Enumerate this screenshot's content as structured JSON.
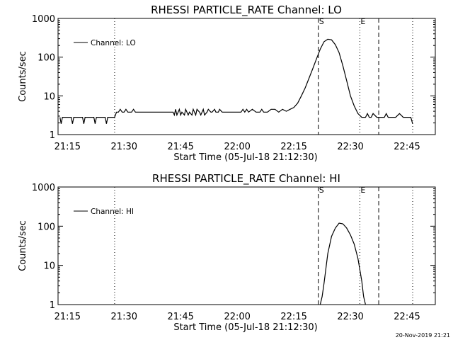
{
  "timestamp": "20-Nov-2019 21:21",
  "chart_data": [
    {
      "type": "line",
      "title": "RHESSI PARTICLE_RATE Channel: LO",
      "xlabel": "Start Time (05-Jul-18 21:12:30)",
      "ylabel": "Counts/sec",
      "yscale": "log",
      "ylim": [
        1,
        1000
      ],
      "xlim": [
        "21:12:30",
        "22:52:30"
      ],
      "x_ticks": [
        "21:15",
        "21:30",
        "21:45",
        "22:00",
        "22:15",
        "22:30",
        "22:45"
      ],
      "y_ticks": [
        "1",
        "10",
        "100",
        "1000"
      ],
      "legend": {
        "label": "Channel: LO",
        "position": "top-left"
      },
      "markers": [
        {
          "label": "",
          "time": "21:27:30",
          "style": "dotted"
        },
        {
          "label": "S",
          "time": "22:21:30",
          "style": "dashed"
        },
        {
          "label": "E",
          "time": "22:32:30",
          "style": "dotted"
        },
        {
          "label": "",
          "time": "22:37:30",
          "style": "dashed"
        },
        {
          "label": "",
          "time": "22:46:30",
          "style": "dotted"
        }
      ],
      "series": [
        {
          "name": "Channel: LO",
          "x": [
            "21:13:00",
            "21:13:20",
            "21:13:40",
            "21:14:00",
            "21:14:20",
            "21:15:00",
            "21:16:00",
            "21:16:20",
            "21:16:40",
            "21:17:00",
            "21:18:00",
            "21:19:00",
            "21:19:20",
            "21:19:40",
            "21:20:00",
            "21:21:00",
            "21:22:00",
            "21:22:20",
            "21:22:40",
            "21:23:00",
            "21:24:00",
            "21:25:00",
            "21:25:20",
            "21:25:40",
            "21:26:00",
            "21:27:00",
            "21:27:30",
            "21:28:00",
            "21:28:30",
            "21:29:00",
            "21:29:30",
            "21:30:00",
            "21:30:30",
            "21:31:00",
            "21:32:00",
            "21:32:30",
            "21:33:00",
            "21:34:00",
            "21:35:00",
            "21:36:00",
            "21:38:00",
            "21:40:00",
            "21:42:00",
            "21:43:00",
            "21:43:20",
            "21:43:40",
            "21:44:00",
            "21:44:20",
            "21:44:40",
            "21:45:00",
            "21:45:20",
            "21:46:00",
            "21:46:20",
            "21:47:00",
            "21:47:20",
            "21:48:00",
            "21:48:20",
            "21:49:00",
            "21:49:20",
            "21:50:00",
            "21:50:20",
            "21:51:00",
            "21:51:20",
            "21:52:00",
            "21:52:20",
            "21:53:00",
            "21:53:20",
            "21:54:00",
            "21:54:20",
            "21:55:00",
            "21:55:20",
            "21:56:00",
            "21:57:00",
            "21:58:00",
            "21:59:00",
            "22:00:00",
            "22:01:00",
            "22:01:30",
            "22:02:00",
            "22:02:30",
            "22:03:00",
            "22:04:00",
            "22:05:00",
            "22:06:00",
            "22:06:30",
            "22:07:00",
            "22:08:00",
            "22:09:00",
            "22:10:00",
            "22:11:00",
            "22:12:00",
            "22:13:00",
            "22:14:00",
            "22:15:00",
            "22:16:00",
            "22:17:00",
            "22:18:00",
            "22:19:00",
            "22:20:00",
            "22:21:00",
            "22:22:00",
            "22:23:00",
            "22:24:00",
            "22:25:00",
            "22:26:00",
            "22:27:00",
            "22:28:00",
            "22:29:00",
            "22:30:00",
            "22:31:00",
            "22:32:00",
            "22:33:00",
            "22:34:00",
            "22:34:30",
            "22:35:00",
            "22:35:30",
            "22:36:00",
            "22:37:00",
            "22:38:00",
            "22:39:00",
            "22:39:30",
            "22:40:00",
            "22:41:00",
            "22:42:00",
            "22:43:00",
            "22:44:00",
            "22:45:00",
            "22:46:00",
            "22:46:30"
          ],
          "values": [
            2.8,
            1.9,
            2.8,
            2.8,
            2.8,
            2.8,
            2.8,
            1.9,
            2.8,
            2.8,
            2.8,
            2.8,
            1.9,
            2.8,
            2.8,
            2.8,
            2.8,
            1.9,
            2.8,
            2.8,
            2.8,
            2.8,
            1.9,
            2.8,
            2.8,
            2.8,
            2.8,
            3.8,
            3.8,
            4.5,
            3.8,
            3.8,
            4.5,
            3.8,
            3.8,
            4.5,
            3.8,
            3.8,
            3.8,
            3.8,
            3.8,
            3.8,
            3.8,
            3.8,
            3.2,
            4.5,
            3.2,
            3.8,
            4.5,
            3.2,
            3.8,
            3.2,
            4.5,
            3.2,
            3.8,
            3.2,
            4.5,
            3.2,
            4.5,
            3.8,
            3.2,
            4.5,
            3.2,
            3.8,
            4.5,
            3.8,
            3.8,
            4.5,
            3.8,
            3.8,
            4.5,
            3.8,
            3.8,
            3.8,
            3.8,
            3.8,
            3.8,
            4.5,
            3.8,
            4.5,
            3.8,
            4.5,
            3.8,
            3.8,
            4.5,
            3.8,
            3.8,
            4.5,
            4.5,
            3.8,
            4.5,
            4.0,
            4.5,
            5.0,
            6.5,
            10,
            16,
            28,
            50,
            90,
            160,
            250,
            290,
            280,
            210,
            130,
            60,
            25,
            10,
            5.5,
            3.5,
            2.8,
            2.8,
            3.5,
            2.8,
            2.8,
            3.5,
            2.8,
            2.8,
            2.8,
            3.5,
            2.8,
            2.8,
            2.8,
            3.5,
            2.8,
            2.8,
            2.8,
            1.9
          ]
        }
      ]
    },
    {
      "type": "line",
      "title": "RHESSI PARTICLE_RATE Channel: HI",
      "xlabel": "Start Time (05-Jul-18 21:12:30)",
      "ylabel": "Counts/sec",
      "yscale": "log",
      "ylim": [
        1,
        1000
      ],
      "xlim": [
        "21:12:30",
        "22:52:30"
      ],
      "x_ticks": [
        "21:15",
        "21:30",
        "21:45",
        "22:00",
        "22:15",
        "22:30",
        "22:45"
      ],
      "y_ticks": [
        "1",
        "10",
        "100",
        "1000"
      ],
      "legend": {
        "label": "Channel: HI",
        "position": "top-left"
      },
      "markers": [
        {
          "label": "",
          "time": "21:27:30",
          "style": "dotted"
        },
        {
          "label": "S",
          "time": "22:21:30",
          "style": "dashed"
        },
        {
          "label": "E",
          "time": "22:32:30",
          "style": "dotted"
        },
        {
          "label": "",
          "time": "22:37:30",
          "style": "dashed"
        },
        {
          "label": "",
          "time": "22:46:30",
          "style": "dotted"
        }
      ],
      "series": [
        {
          "name": "Channel: HI",
          "x": [
            "22:22:00",
            "22:22:30",
            "22:23:00",
            "22:24:00",
            "22:25:00",
            "22:26:00",
            "22:27:00",
            "22:28:00",
            "22:29:00",
            "22:30:00",
            "22:31:00",
            "22:32:00",
            "22:33:00",
            "22:33:30",
            "22:34:00"
          ],
          "values": [
            1,
            1.6,
            3.5,
            20,
            55,
            90,
            120,
            115,
            90,
            60,
            35,
            15,
            4,
            1.6,
            1
          ]
        }
      ]
    }
  ]
}
